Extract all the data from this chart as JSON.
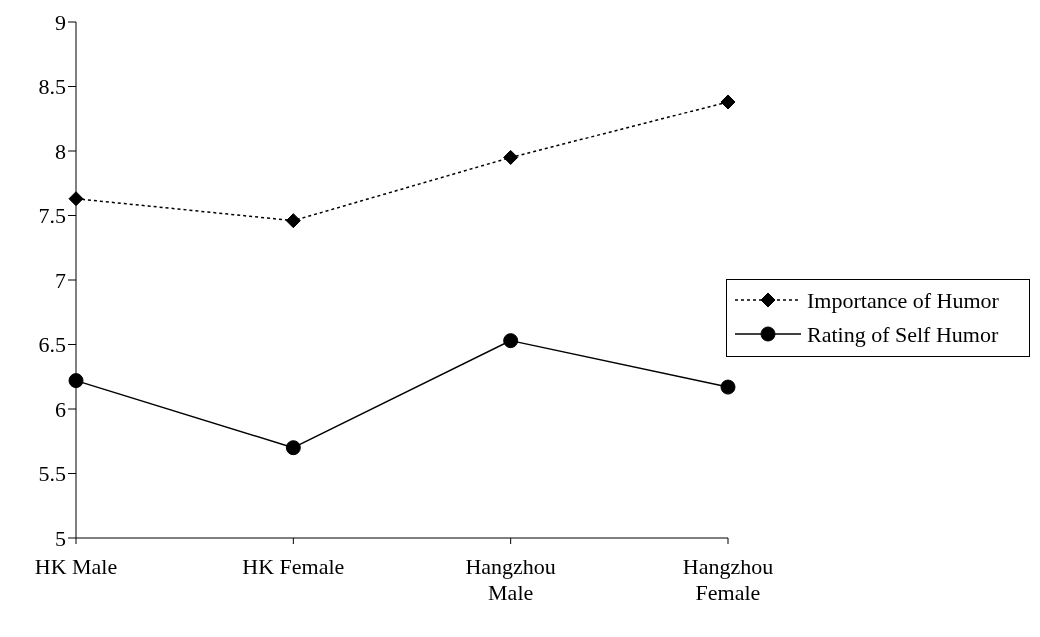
{
  "chart_data": {
    "type": "line",
    "categories": [
      "HK Male",
      "HK Female",
      "Hangzhou Male",
      "Hangzhou Female"
    ],
    "series": [
      {
        "name": "Importance of Humor",
        "color": "#000000",
        "values": [
          7.63,
          7.46,
          7.95,
          8.38
        ],
        "marker": "diamond",
        "line_style": "dotted"
      },
      {
        "name": "Rating of Self Humor",
        "color": "#000000",
        "values": [
          6.22,
          5.7,
          6.53,
          6.17
        ],
        "marker": "circle",
        "line_style": "solid"
      }
    ],
    "ylim": [
      5,
      9
    ],
    "yticks": [
      5,
      5.5,
      6,
      6.5,
      7,
      7.5,
      8,
      8.5,
      9
    ],
    "grid": false,
    "legend": "right"
  }
}
